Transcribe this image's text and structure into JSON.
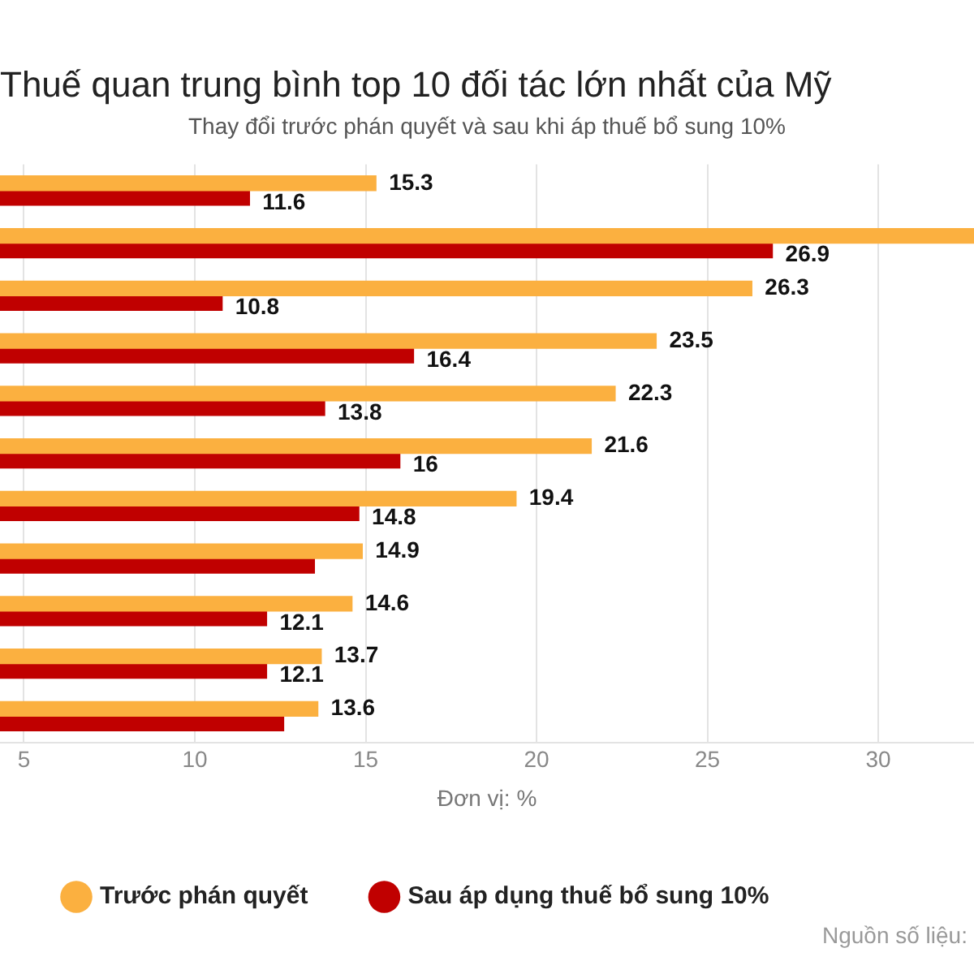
{
  "chart_data": {
    "type": "bar",
    "orientation": "horizontal",
    "title": "Thuế quan trung bình top 10 đối tác lớn nhất của Mỹ",
    "subtitle": "Thay đổi trước phán quyết và sau khi áp thuế bổ sung 10%",
    "xlabel": "Đơn vị: %",
    "categories": [
      null,
      null,
      null,
      null,
      null,
      null,
      null,
      null,
      null,
      null,
      null
    ],
    "series": [
      {
        "name": "Trước phán quyết",
        "color": "#fbb040",
        "values": [
          15.3,
          32.8,
          26.3,
          23.5,
          22.3,
          21.6,
          19.4,
          14.9,
          14.6,
          13.7,
          13.6
        ],
        "value_labels": [
          "15.3",
          null,
          "26.3",
          "23.5",
          "22.3",
          "21.6",
          "19.4",
          "14.9",
          "14.6",
          "13.7",
          "13.6"
        ]
      },
      {
        "name": "Sau áp dụng thuế bổ sung 10%",
        "color": "#c00000",
        "values": [
          11.6,
          26.9,
          10.8,
          16.4,
          13.8,
          16,
          14.8,
          13.5,
          12.1,
          12.1,
          12.6
        ],
        "value_labels": [
          "11.6",
          "26.9",
          "10.8",
          "16.4",
          "13.8",
          "16",
          "14.8",
          null,
          "12.1",
          "12.1",
          null
        ]
      }
    ],
    "xlim": [
      4.3,
      32.8
    ],
    "xticks": [
      5,
      10,
      15,
      20,
      25,
      30
    ],
    "grid": "x",
    "legend": "bottom left",
    "annotations": [
      "Nguồn số liệu:"
    ]
  }
}
